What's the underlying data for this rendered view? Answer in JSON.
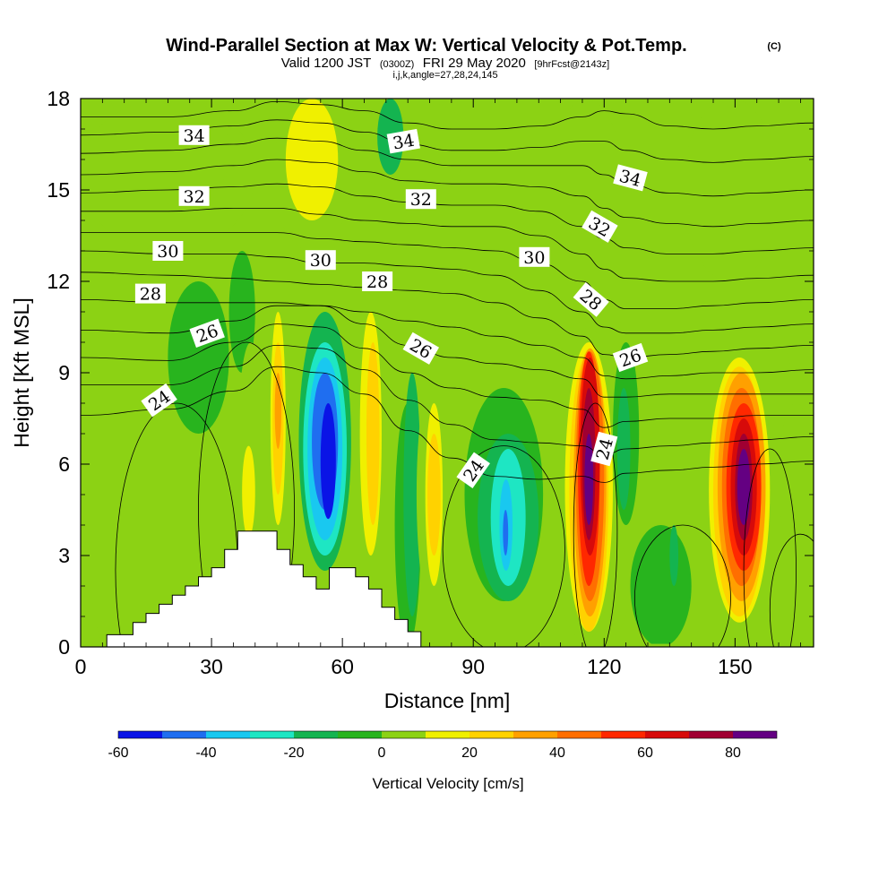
{
  "chart_data": {
    "type": "heatmap",
    "title": "Wind-Parallel Section at Max W: Vertical Velocity & Pot.Temp.",
    "title_mark": "(C)",
    "subtitle": {
      "valid": "Valid 1200 JST",
      "utc": "(0300Z)",
      "date": "FRI 29 May 2020",
      "forecast": "[9hrFcst@2143z]"
    },
    "subtitle2": "i,j,k,angle=27,28,24,145",
    "xlabel": "Distance [nm]",
    "ylabel": "Height [Kft MSL]",
    "xlim": [
      0,
      168
    ],
    "ylim": [
      0,
      18
    ],
    "xticks": [
      0,
      30,
      60,
      90,
      120,
      150
    ],
    "yticks": [
      0,
      3,
      6,
      9,
      12,
      15,
      18
    ],
    "background_value": 0,
    "cells": [
      {
        "x": 0,
        "y": 0,
        "w": 168,
        "h": 18,
        "v": 0
      },
      {
        "x": 0,
        "y": 0,
        "w": 12,
        "h": 18,
        "v": 5
      },
      {
        "x": 0,
        "y": 13,
        "w": 40,
        "h": 5,
        "v": 5
      },
      {
        "x": 14,
        "y": 14.5,
        "w": 10,
        "h": 3.5,
        "v": 5
      },
      {
        "x": 26,
        "y": 15,
        "w": 8,
        "h": 2.5,
        "v": 5
      },
      {
        "x": 20,
        "y": 7,
        "w": 14,
        "h": 5,
        "v": -5
      },
      {
        "x": 34,
        "y": 9,
        "w": 6,
        "h": 4,
        "v": -5
      },
      {
        "x": 36,
        "y": 3,
        "w": 6,
        "h": 7,
        "v": 5
      },
      {
        "x": 40,
        "y": 4,
        "w": 4,
        "h": 5,
        "v": 5
      },
      {
        "x": 37,
        "y": 3.6,
        "w": 3,
        "h": 3,
        "v": 15
      },
      {
        "x": 42,
        "y": 3,
        "w": 6,
        "h": 9,
        "v": 5
      },
      {
        "x": 43.5,
        "y": 4,
        "w": 3.5,
        "h": 7,
        "v": 15
      },
      {
        "x": 44,
        "y": 5,
        "w": 2.5,
        "h": 5,
        "v": 25
      },
      {
        "x": 44.5,
        "y": 6.5,
        "w": 1.5,
        "h": 2.5,
        "v": 35
      },
      {
        "x": 50,
        "y": 2.5,
        "w": 12,
        "h": 8.5,
        "v": -15
      },
      {
        "x": 51,
        "y": 3,
        "w": 10,
        "h": 7,
        "v": -25
      },
      {
        "x": 52,
        "y": 3.5,
        "w": 8,
        "h": 6,
        "v": -35
      },
      {
        "x": 53,
        "y": 4.5,
        "w": 6,
        "h": 4.5,
        "v": -45
      },
      {
        "x": 55,
        "y": 4.2,
        "w": 3.5,
        "h": 3.8,
        "v": -55
      },
      {
        "x": 63,
        "y": 2.5,
        "w": 9,
        "h": 10,
        "v": 5
      },
      {
        "x": 64,
        "y": 3,
        "w": 5,
        "h": 8,
        "v": 15
      },
      {
        "x": 65.5,
        "y": 4,
        "w": 3,
        "h": 6,
        "v": 25
      },
      {
        "x": 72,
        "y": 0,
        "w": 6,
        "h": 8,
        "v": -5
      },
      {
        "x": 74,
        "y": 1,
        "w": 4,
        "h": 8,
        "v": -15
      },
      {
        "x": 77,
        "y": 1,
        "w": 8,
        "h": 8,
        "v": 5
      },
      {
        "x": 79,
        "y": 2,
        "w": 4,
        "h": 6,
        "v": 15
      },
      {
        "x": 79.5,
        "y": 3,
        "w": 3,
        "h": 4,
        "v": 25
      },
      {
        "x": 60,
        "y": 15,
        "w": 30,
        "h": 3,
        "v": 5
      },
      {
        "x": 44,
        "y": 13,
        "w": 18,
        "h": 5,
        "v": 5
      },
      {
        "x": 47,
        "y": 14,
        "w": 12,
        "h": 4,
        "v": 15
      },
      {
        "x": 68,
        "y": 15.5,
        "w": 6,
        "h": 2.5,
        "v": -15
      },
      {
        "x": 88,
        "y": 1.5,
        "w": 18,
        "h": 7,
        "v": -5
      },
      {
        "x": 91,
        "y": 1.5,
        "w": 14,
        "h": 5.5,
        "v": -15
      },
      {
        "x": 94,
        "y": 2,
        "w": 8,
        "h": 4.5,
        "v": -25
      },
      {
        "x": 96,
        "y": 2.5,
        "w": 3,
        "h": 3,
        "v": -35
      },
      {
        "x": 96.8,
        "y": 3,
        "w": 1.2,
        "h": 1.5,
        "v": -45
      },
      {
        "x": 106,
        "y": 9,
        "w": 20,
        "h": 9,
        "v": 5
      },
      {
        "x": 112,
        "y": 12,
        "w": 8,
        "h": 6,
        "v": 5
      },
      {
        "x": 110,
        "y": 0,
        "w": 16,
        "h": 4,
        "v": 5
      },
      {
        "x": 110,
        "y": 0.3,
        "w": 13,
        "h": 10.2,
        "v": 5
      },
      {
        "x": 111,
        "y": 0.5,
        "w": 11,
        "h": 9.5,
        "v": 15
      },
      {
        "x": 112,
        "y": 0.5,
        "w": 9,
        "h": 9.2,
        "v": 25
      },
      {
        "x": 113,
        "y": 1,
        "w": 7.5,
        "h": 8.8,
        "v": 35
      },
      {
        "x": 113.5,
        "y": 1.5,
        "w": 6.5,
        "h": 8.2,
        "v": 45
      },
      {
        "x": 114,
        "y": 2,
        "w": 5,
        "h": 7.7,
        "v": 55
      },
      {
        "x": 114.5,
        "y": 3,
        "w": 4.5,
        "h": 6.5,
        "v": 65
      },
      {
        "x": 115,
        "y": 3.5,
        "w": 3,
        "h": 5,
        "v": 75
      },
      {
        "x": 115.5,
        "y": 4,
        "w": 2,
        "h": 3,
        "v": 85
      },
      {
        "x": 122,
        "y": 4,
        "w": 6,
        "h": 6,
        "v": -5
      },
      {
        "x": 123,
        "y": 4.5,
        "w": 3,
        "h": 4,
        "v": -15
      },
      {
        "x": 126,
        "y": 0,
        "w": 14,
        "h": 4,
        "v": -5
      },
      {
        "x": 135,
        "y": 2,
        "w": 2,
        "h": 2,
        "v": -15
      },
      {
        "x": 140,
        "y": 1,
        "w": 22,
        "h": 9,
        "v": 5
      },
      {
        "x": 144,
        "y": 0.8,
        "w": 14,
        "h": 8.7,
        "v": 15
      },
      {
        "x": 145,
        "y": 1,
        "w": 12,
        "h": 8.2,
        "v": 25
      },
      {
        "x": 146,
        "y": 1.5,
        "w": 11,
        "h": 7.5,
        "v": 35
      },
      {
        "x": 147,
        "y": 2,
        "w": 9,
        "h": 6.5,
        "v": 45
      },
      {
        "x": 148,
        "y": 2.5,
        "w": 8,
        "h": 5.5,
        "v": 55
      },
      {
        "x": 149,
        "y": 3,
        "w": 6,
        "h": 4.5,
        "v": 65
      },
      {
        "x": 150,
        "y": 3.5,
        "w": 4,
        "h": 3.5,
        "v": 75
      },
      {
        "x": 150.5,
        "y": 4,
        "w": 3,
        "h": 2.5,
        "v": 85
      },
      {
        "x": 156,
        "y": 0,
        "w": 12,
        "h": 3,
        "v": 5
      },
      {
        "x": 160,
        "y": 3,
        "w": 8,
        "h": 5,
        "v": 5
      },
      {
        "x": 160,
        "y": 9,
        "w": 8,
        "h": 9,
        "v": 5
      },
      {
        "x": 138,
        "y": 12,
        "w": 22,
        "h": 6,
        "v": 5
      },
      {
        "x": 0,
        "y": 0,
        "w": 168,
        "h": 0.1,
        "v": 0
      }
    ],
    "terrain": {
      "x": [
        6,
        6,
        12,
        12,
        15,
        15,
        18,
        18,
        21,
        21,
        24,
        24,
        27,
        27,
        30,
        30,
        33,
        33,
        36,
        36,
        45,
        45,
        48,
        48,
        51,
        51,
        54,
        54,
        57,
        57,
        63,
        63,
        66,
        66,
        69,
        69,
        72,
        72,
        75,
        75,
        78,
        78
      ],
      "y": [
        0,
        0.4,
        0.4,
        0.8,
        0.8,
        1.1,
        1.1,
        1.4,
        1.4,
        1.7,
        1.7,
        2.0,
        2.0,
        2.3,
        2.3,
        2.6,
        2.6,
        3.2,
        3.2,
        3.8,
        3.8,
        3.2,
        3.2,
        2.7,
        2.7,
        2.3,
        2.3,
        1.9,
        1.9,
        2.6,
        2.6,
        2.3,
        2.3,
        1.9,
        1.9,
        1.3,
        1.3,
        0.9,
        0.9,
        0.5,
        0.5,
        0
      ]
    },
    "isentropes": [
      {
        "x": [
          0,
          20,
          35,
          45,
          55,
          65,
          75,
          85,
          95,
          105,
          115,
          120,
          125,
          135,
          145,
          155,
          168
        ],
        "y": [
          17.4,
          17.4,
          17.6,
          17.9,
          17.8,
          17.6,
          17.2,
          17.0,
          17.0,
          17.1,
          17.4,
          17.6,
          17.5,
          17.1,
          17.0,
          17.1,
          17.2
        ]
      },
      {
        "x": [
          0,
          20,
          35,
          45,
          55,
          65,
          75,
          85,
          95,
          105,
          115,
          120,
          125,
          135,
          145,
          155,
          168
        ],
        "y": [
          16.8,
          16.9,
          17.1,
          17.3,
          17.2,
          16.9,
          16.5,
          16.3,
          16.3,
          16.4,
          16.6,
          16.6,
          16.3,
          16.0,
          15.9,
          16.0,
          16.1
        ]
      },
      {
        "x": [
          0,
          20,
          35,
          45,
          55,
          65,
          75,
          85,
          95,
          105,
          115,
          120,
          125,
          135,
          145,
          155,
          168
        ],
        "y": [
          16.2,
          16.3,
          16.5,
          16.7,
          16.6,
          16.3,
          16.0,
          15.8,
          15.8,
          15.8,
          15.8,
          15.5,
          15.2,
          14.9,
          14.8,
          14.9,
          15.0
        ]
      },
      {
        "x": [
          0,
          20,
          35,
          45,
          55,
          65,
          75,
          85,
          95,
          105,
          115,
          120,
          125,
          135,
          145,
          155,
          168
        ],
        "y": [
          15.5,
          15.6,
          15.8,
          16.0,
          15.9,
          15.6,
          15.3,
          15.2,
          15.2,
          15.1,
          14.8,
          14.4,
          14.1,
          13.9,
          13.8,
          13.9,
          14.0
        ]
      },
      {
        "x": [
          0,
          20,
          35,
          45,
          55,
          65,
          75,
          85,
          95,
          105,
          115,
          120,
          125,
          135,
          145,
          155,
          168
        ],
        "y": [
          14.9,
          15.0,
          15.1,
          15.2,
          15.1,
          14.8,
          14.6,
          14.5,
          14.5,
          14.3,
          13.8,
          13.4,
          13.1,
          12.9,
          12.9,
          13.0,
          13.1
        ]
      },
      {
        "x": [
          0,
          20,
          35,
          45,
          55,
          65,
          75,
          85,
          95,
          105,
          115,
          120,
          125,
          135,
          145,
          155,
          168
        ],
        "y": [
          14.3,
          14.3,
          14.4,
          14.4,
          14.2,
          14.0,
          13.9,
          13.8,
          13.8,
          13.5,
          12.9,
          12.4,
          12.1,
          12.0,
          12.0,
          12.1,
          12.2
        ]
      },
      {
        "x": [
          0,
          20,
          35,
          45,
          55,
          65,
          75,
          85,
          95,
          105,
          115,
          120,
          125,
          135,
          145,
          155,
          168
        ],
        "y": [
          13.6,
          13.6,
          13.6,
          13.6,
          13.4,
          13.3,
          13.2,
          13.1,
          13.0,
          12.6,
          12.0,
          11.4,
          11.1,
          11.1,
          11.2,
          11.3,
          11.4
        ]
      },
      {
        "x": [
          0,
          20,
          35,
          45,
          55,
          65,
          75,
          85,
          95,
          105,
          115,
          120,
          125,
          135,
          145,
          155,
          168
        ],
        "y": [
          13.0,
          12.9,
          12.9,
          12.8,
          12.6,
          12.6,
          12.5,
          12.4,
          12.2,
          11.7,
          11.0,
          10.5,
          10.3,
          10.3,
          10.4,
          10.5,
          10.6
        ]
      },
      {
        "x": [
          0,
          20,
          35,
          45,
          55,
          65,
          75,
          85,
          95,
          105,
          115,
          120,
          125,
          135,
          145,
          155,
          168
        ],
        "y": [
          12.3,
          12.2,
          12.1,
          12.0,
          11.9,
          11.8,
          11.7,
          11.6,
          11.3,
          10.8,
          10.2,
          9.6,
          9.5,
          9.6,
          9.7,
          9.8,
          9.9
        ]
      },
      {
        "x": [
          0,
          20,
          35,
          45,
          55,
          65,
          75,
          85,
          95,
          105,
          115,
          120,
          125,
          135,
          145,
          155,
          168
        ],
        "y": [
          11.4,
          11.3,
          11.3,
          11.3,
          11.2,
          11.0,
          10.7,
          10.5,
          10.2,
          9.9,
          9.5,
          8.9,
          8.8,
          8.9,
          9.0,
          9.0,
          9.1
        ]
      },
      {
        "x": [
          0,
          20,
          35,
          45,
          55,
          65,
          75,
          85,
          95,
          105,
          115,
          120,
          125,
          135,
          145,
          155,
          168
        ],
        "y": [
          10.4,
          10.3,
          10.7,
          11.2,
          11.2,
          10.6,
          9.9,
          9.5,
          9.3,
          9.1,
          8.8,
          8.2,
          8.2,
          8.3,
          8.3,
          8.3,
          8.3
        ]
      },
      {
        "x": [
          0,
          20,
          35,
          45,
          55,
          65,
          75,
          85,
          95,
          105,
          115,
          120,
          125,
          135,
          145,
          155,
          168
        ],
        "y": [
          9.5,
          9.4,
          10.0,
          10.6,
          10.5,
          9.8,
          9.0,
          8.5,
          8.2,
          8.1,
          7.8,
          7.2,
          7.4,
          7.5,
          7.5,
          7.6,
          7.6
        ]
      },
      {
        "x": [
          0,
          20,
          35,
          45,
          55,
          65,
          75,
          85,
          95,
          105,
          115,
          120,
          125,
          135,
          145,
          155,
          168
        ],
        "y": [
          8.6,
          8.6,
          9.2,
          9.9,
          9.8,
          9.1,
          8.1,
          7.3,
          6.8,
          6.7,
          6.6,
          6.3,
          6.5,
          6.6,
          6.7,
          6.8,
          6.9
        ]
      },
      {
        "x": [
          0,
          20,
          35,
          45,
          55,
          65,
          75,
          85,
          95,
          105,
          115,
          120,
          125,
          135,
          145,
          155,
          168
        ],
        "y": [
          7.6,
          7.8,
          8.4,
          9.2,
          9.0,
          8.3,
          7.1,
          6.2,
          5.6,
          5.5,
          5.6,
          5.4,
          5.7,
          5.8,
          5.9,
          6.0,
          6.1
        ]
      }
    ],
    "closed_contours": [
      {
        "cx": 38,
        "cy": 4.5,
        "rx": 11,
        "ry": 5.5
      },
      {
        "cx": 22,
        "cy": 2.5,
        "rx": 14,
        "ry": 5.5
      },
      {
        "cx": 97,
        "cy": 3.2,
        "rx": 14,
        "ry": 3.4
      },
      {
        "cx": 118,
        "cy": 3.8,
        "rx": 5,
        "ry": 4.2
      },
      {
        "cx": 138,
        "cy": 1.6,
        "rx": 11,
        "ry": 2.4
      },
      {
        "cx": 158,
        "cy": 2.5,
        "rx": 6,
        "ry": 4
      },
      {
        "cx": 165,
        "cy": 1.2,
        "rx": 7,
        "ry": 2.5
      }
    ],
    "contour_labels": [
      {
        "text": "34",
        "x": 26,
        "y": 16.8,
        "angle": 0
      },
      {
        "text": "34",
        "x": 74,
        "y": 16.6,
        "angle": -10
      },
      {
        "text": "34",
        "x": 126,
        "y": 15.4,
        "angle": 15
      },
      {
        "text": "32",
        "x": 26,
        "y": 14.8,
        "angle": 0
      },
      {
        "text": "32",
        "x": 78,
        "y": 14.7,
        "angle": 0
      },
      {
        "text": "32",
        "x": 119,
        "y": 13.8,
        "angle": 30
      },
      {
        "text": "30",
        "x": 20,
        "y": 13.0,
        "angle": 0
      },
      {
        "text": "30",
        "x": 55,
        "y": 12.7,
        "angle": 0
      },
      {
        "text": "30",
        "x": 104,
        "y": 12.8,
        "angle": 0
      },
      {
        "text": "28",
        "x": 16,
        "y": 11.6,
        "angle": 0
      },
      {
        "text": "28",
        "x": 68,
        "y": 12.0,
        "angle": 0
      },
      {
        "text": "28",
        "x": 117,
        "y": 11.4,
        "angle": 40
      },
      {
        "text": "26",
        "x": 29,
        "y": 10.3,
        "angle": -20
      },
      {
        "text": "26",
        "x": 78,
        "y": 9.8,
        "angle": 30
      },
      {
        "text": "26",
        "x": 126,
        "y": 9.5,
        "angle": -20
      },
      {
        "text": "24",
        "x": 18,
        "y": 8.1,
        "angle": -35
      },
      {
        "text": "24",
        "x": 90,
        "y": 5.8,
        "angle": -55
      },
      {
        "text": "24",
        "x": 120,
        "y": 6.5,
        "angle": -75
      }
    ],
    "colorbar": {
      "title": "Vertical Velocity [cm/s]",
      "min": -60,
      "max": 90,
      "step": 10,
      "tick_values": [
        -60,
        -40,
        -20,
        0,
        20,
        40,
        60,
        80
      ],
      "tick_labels": [
        "-60",
        "-40",
        "-20",
        "0",
        "20",
        "40",
        "60",
        "80"
      ],
      "colors": [
        "#0a14e6",
        "#1f6ef0",
        "#19c8f0",
        "#1ee6c3",
        "#14b450",
        "#28b41e",
        "#8cd214",
        "#f0f000",
        "#ffd200",
        "#ffa000",
        "#ff6e00",
        "#ff2800",
        "#d70a0a",
        "#a00032",
        "#640082"
      ]
    }
  }
}
